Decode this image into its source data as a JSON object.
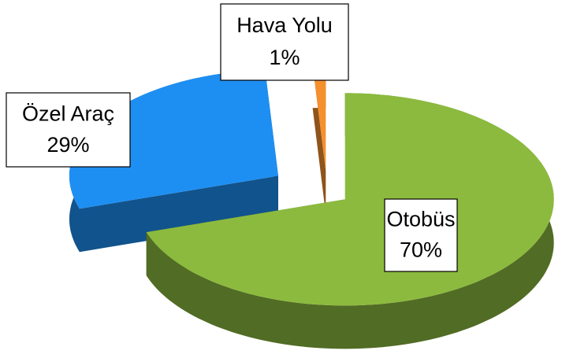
{
  "chart_data": {
    "type": "pie3d",
    "categories": [
      "Otobüs",
      "Özel Araç",
      "Hava Yolu"
    ],
    "values": [
      70,
      29,
      1
    ],
    "value_labels": [
      "70%",
      "29%",
      "1%"
    ],
    "colors": [
      "#8cba3e",
      "#1e8ff2",
      "#f5902e"
    ]
  }
}
